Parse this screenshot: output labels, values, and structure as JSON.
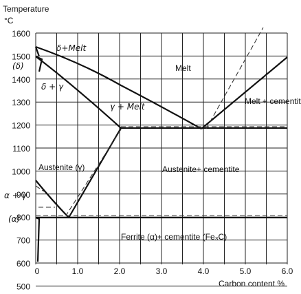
{
  "diagram": {
    "y_axis_title": "Temperature",
    "y_axis_unit": "°C",
    "x_axis_title": "Carbon content %",
    "y_ticks": [
      "1600",
      "1500",
      "1400",
      "1300",
      "1200",
      "1100",
      "1000",
      "900",
      "800",
      "700",
      "600",
      "500"
    ],
    "x_ticks": [
      "0",
      "1.0",
      "2.0",
      "3.0",
      "4.0",
      "5.0",
      "6.0"
    ],
    "regions": {
      "melt": "Melt",
      "delta_melt": "δ+Melt",
      "delta": "(δ)",
      "delta_gamma": "δ + γ",
      "gamma_melt": "γ + Melt",
      "melt_cementite": "Melt + cementite",
      "austenite": "Austenite (γ)",
      "austenite_cementite": "Austenite+ cementite",
      "alpha_gamma": "α + γ",
      "alpha": "(α)",
      "ferrite_cementite": "Ferrite (α)+ cementite (Fe₃C)"
    }
  }
}
